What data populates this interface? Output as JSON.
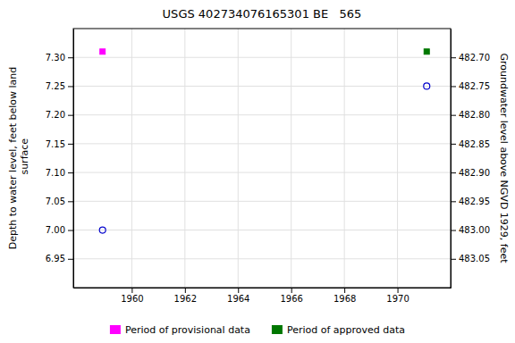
{
  "chart_data": {
    "type": "scatter",
    "title": "USGS 402734076165301 BE   565",
    "y_label": "Depth to water level, feet below land\n surface",
    "y2_label": "Groundwater level above NGVD 1929, feet",
    "xlim": [
      1957.8,
      1972.0
    ],
    "xticks": [
      1960,
      1962,
      1964,
      1966,
      1968,
      1970
    ],
    "ylim": [
      6.9,
      7.35
    ],
    "yticks": [
      6.95,
      {
        "value": 7.0,
        "label": "7.00"
      },
      7.05,
      {
        "value": 7.1,
        "label": "7.10"
      },
      7.15,
      {
        "value": 7.2,
        "label": "7.20"
      },
      7.25,
      {
        "value": 7.3,
        "label": "7.30"
      }
    ],
    "y2lim": [
      483.1,
      482.65
    ],
    "y2ticks": [
      483.05,
      {
        "value": 483.0,
        "label": "483.00"
      },
      482.95,
      {
        "value": 482.9,
        "label": "482.90"
      },
      482.85,
      {
        "value": 482.8,
        "label": "482.80"
      },
      482.75,
      {
        "value": 482.7,
        "label": "482.70"
      }
    ],
    "grid": true,
    "legend": "bottom",
    "series": [
      {
        "color": "#0000cc",
        "marker": "circle-open",
        "x": [
          1958.9,
          1971.1
        ],
        "values": [
          7.0,
          7.25
        ]
      },
      {
        "name": "Period of provisional data",
        "color": "#ff00ff",
        "marker": "square",
        "x": [
          1958.9
        ],
        "values": [
          7.31
        ]
      },
      {
        "name": "Period of approved data",
        "color": "#007700",
        "marker": "square",
        "x": [
          1971.1
        ],
        "values": [
          7.31
        ]
      }
    ]
  }
}
